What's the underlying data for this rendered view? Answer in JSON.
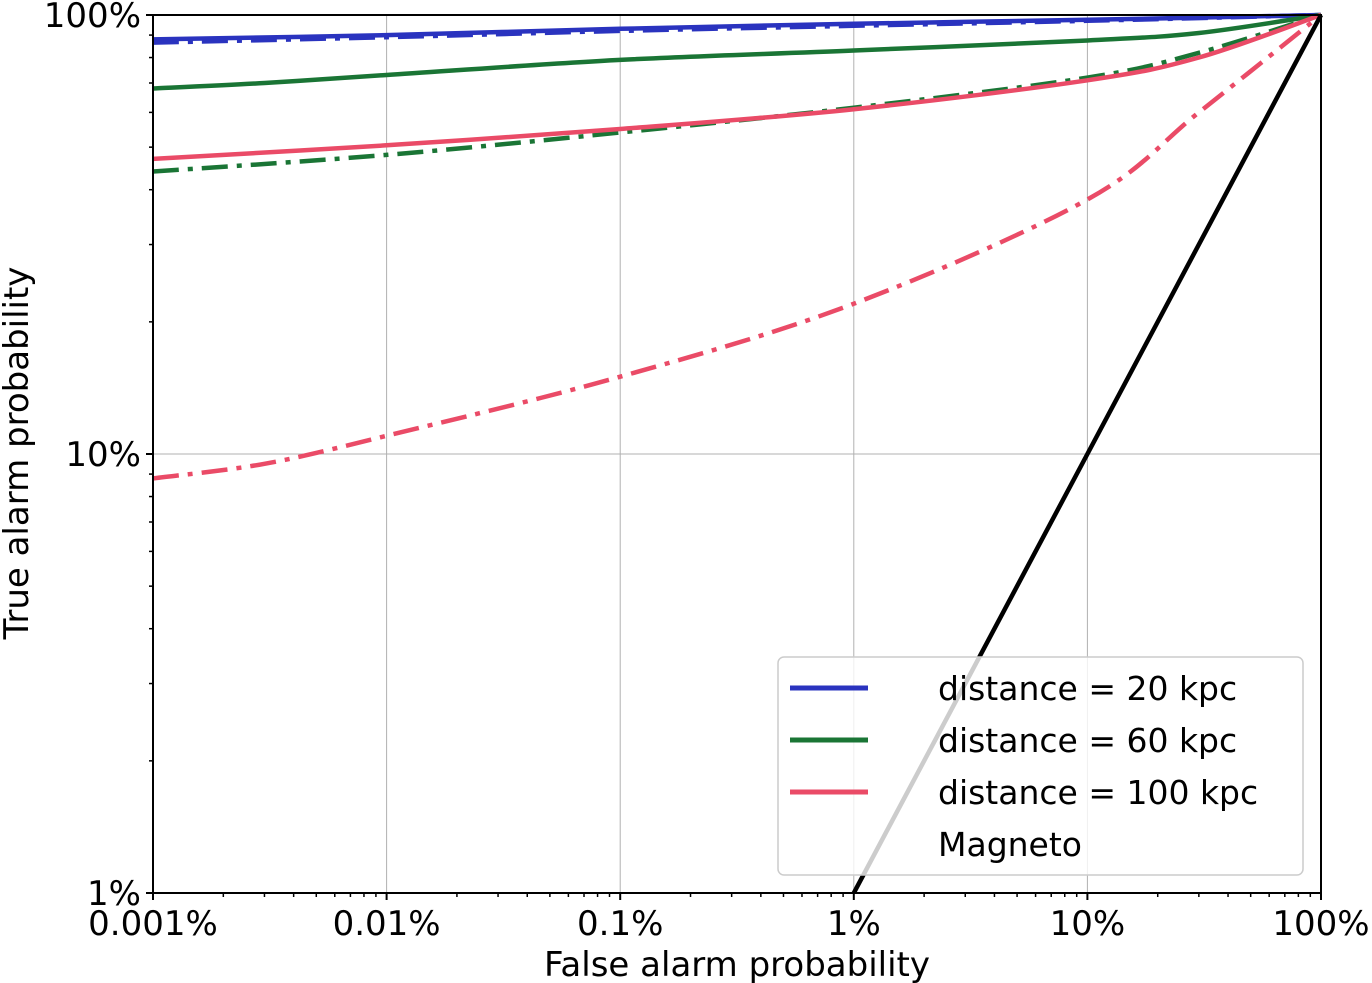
{
  "chart_data": {
    "type": "line",
    "title": "",
    "xlabel": "False alarm probability",
    "ylabel": "True alarm probability",
    "xscale": "log",
    "yscale": "log",
    "xlim": [
      1e-05,
      1.0
    ],
    "ylim": [
      0.01,
      1.0
    ],
    "x_ticks": [
      1e-05,
      0.0001,
      0.001,
      0.01,
      0.1,
      1.0
    ],
    "x_tick_labels": [
      "0.001%",
      "0.01%",
      "0.1%",
      "1%",
      "10%",
      "100%"
    ],
    "y_ticks": [
      0.01,
      0.1,
      1.0
    ],
    "y_tick_labels": [
      "1%",
      "10%",
      "100%"
    ],
    "grid": true,
    "legend_position": "lower-right",
    "legend": [
      {
        "label": "distance = 20 kpc",
        "color": "#2a33bf"
      },
      {
        "label": "distance = 60 kpc",
        "color": "#1a7535"
      },
      {
        "label": "distance = 100 kpc",
        "color": "#ea4b67"
      },
      {
        "label": "Magneto",
        "color": "#000000"
      }
    ],
    "series": [
      {
        "name": "distance = 20 kpc (solid)",
        "color": "#2a33bf",
        "style": "solid",
        "x": [
          1e-05,
          0.0001,
          0.001,
          0.01,
          0.1,
          1.0
        ],
        "y": [
          0.88,
          0.9,
          0.93,
          0.955,
          0.975,
          1.0
        ]
      },
      {
        "name": "distance = 20 kpc (dash-dot)",
        "color": "#2a33bf",
        "style": "dashdot",
        "x": [
          1e-05,
          0.0001,
          0.001,
          0.01,
          0.1,
          1.0
        ],
        "y": [
          0.865,
          0.89,
          0.92,
          0.945,
          0.97,
          1.0
        ]
      },
      {
        "name": "distance = 60 kpc (solid)",
        "color": "#1a7535",
        "style": "solid",
        "x": [
          1e-05,
          3e-05,
          0.0001,
          0.001,
          0.01,
          0.1,
          0.3,
          1.0
        ],
        "y": [
          0.68,
          0.7,
          0.73,
          0.79,
          0.83,
          0.875,
          0.91,
          1.0
        ]
      },
      {
        "name": "distance = 60 kpc (dash-dot)",
        "color": "#1a7535",
        "style": "dashdot",
        "x": [
          1e-05,
          0.0001,
          0.001,
          0.01,
          0.1,
          0.3,
          1.0
        ],
        "y": [
          0.44,
          0.48,
          0.54,
          0.615,
          0.72,
          0.82,
          1.0
        ]
      },
      {
        "name": "distance = 100 kpc (solid)",
        "color": "#ea4b67",
        "style": "solid",
        "x": [
          1e-05,
          0.0001,
          0.001,
          0.01,
          0.1,
          0.3,
          1.0
        ],
        "y": [
          0.47,
          0.505,
          0.55,
          0.61,
          0.71,
          0.8,
          1.0
        ]
      },
      {
        "name": "distance = 100 kpc (dash-dot)",
        "color": "#ea4b67",
        "style": "dashdot",
        "x": [
          1e-05,
          3e-05,
          0.0001,
          0.001,
          0.01,
          0.1,
          0.3,
          1.0
        ],
        "y": [
          0.088,
          0.095,
          0.11,
          0.15,
          0.22,
          0.38,
          0.6,
          1.0
        ]
      },
      {
        "name": "Magneto",
        "color": "#000000",
        "style": "solid",
        "x": [
          0.01,
          1.0
        ],
        "y": [
          0.01,
          1.0
        ]
      }
    ]
  }
}
